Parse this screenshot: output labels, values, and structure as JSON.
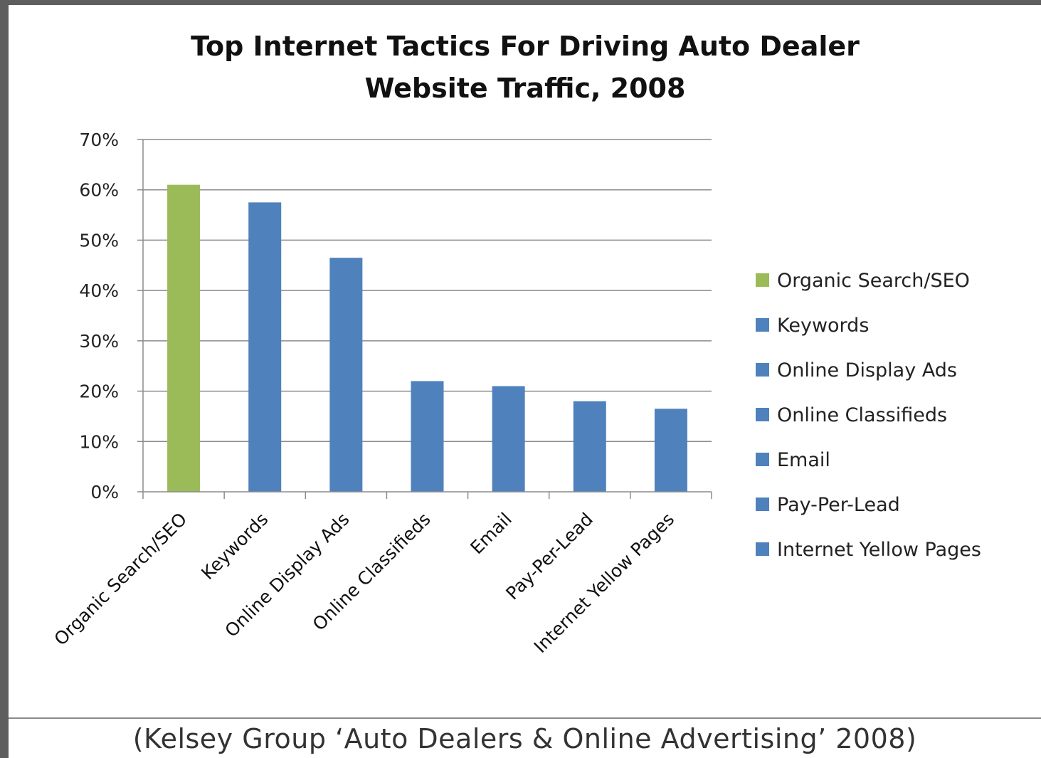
{
  "caption": "(Kelsey Group ‘Auto Dealers & Online Advertising’ 2008)",
  "chart_data": {
    "type": "bar",
    "title": "Top Internet Tactics For Driving Auto Dealer Website Traffic, 2008",
    "title_lines": [
      "Top Internet Tactics For Driving Auto Dealer",
      "Website Traffic, 2008"
    ],
    "xlabel": "",
    "ylabel": "",
    "ylim": [
      0,
      70
    ],
    "y_ticks": [
      0,
      10,
      20,
      30,
      40,
      50,
      60,
      70
    ],
    "y_tick_labels": [
      "0%",
      "10%",
      "20%",
      "30%",
      "40%",
      "50%",
      "60%",
      "70%"
    ],
    "grid": true,
    "legend_position": "right",
    "categories": [
      "Organic Search/SEO",
      "Keywords",
      "Online Display Ads",
      "Online Classifieds",
      "Email",
      "Pay-Per-Lead",
      "Internet Yellow Pages"
    ],
    "values": [
      61,
      57.5,
      46.5,
      22,
      21,
      18,
      16.5
    ],
    "colors": [
      "#9bbb59",
      "#4f81bd",
      "#4f81bd",
      "#4f81bd",
      "#4f81bd",
      "#4f81bd",
      "#4f81bd"
    ],
    "legend": [
      "Organic Search/SEO",
      "Keywords",
      "Online Display Ads",
      "Online Classifieds",
      "Email",
      "Pay-Per-Lead",
      "Internet Yellow Pages"
    ]
  }
}
